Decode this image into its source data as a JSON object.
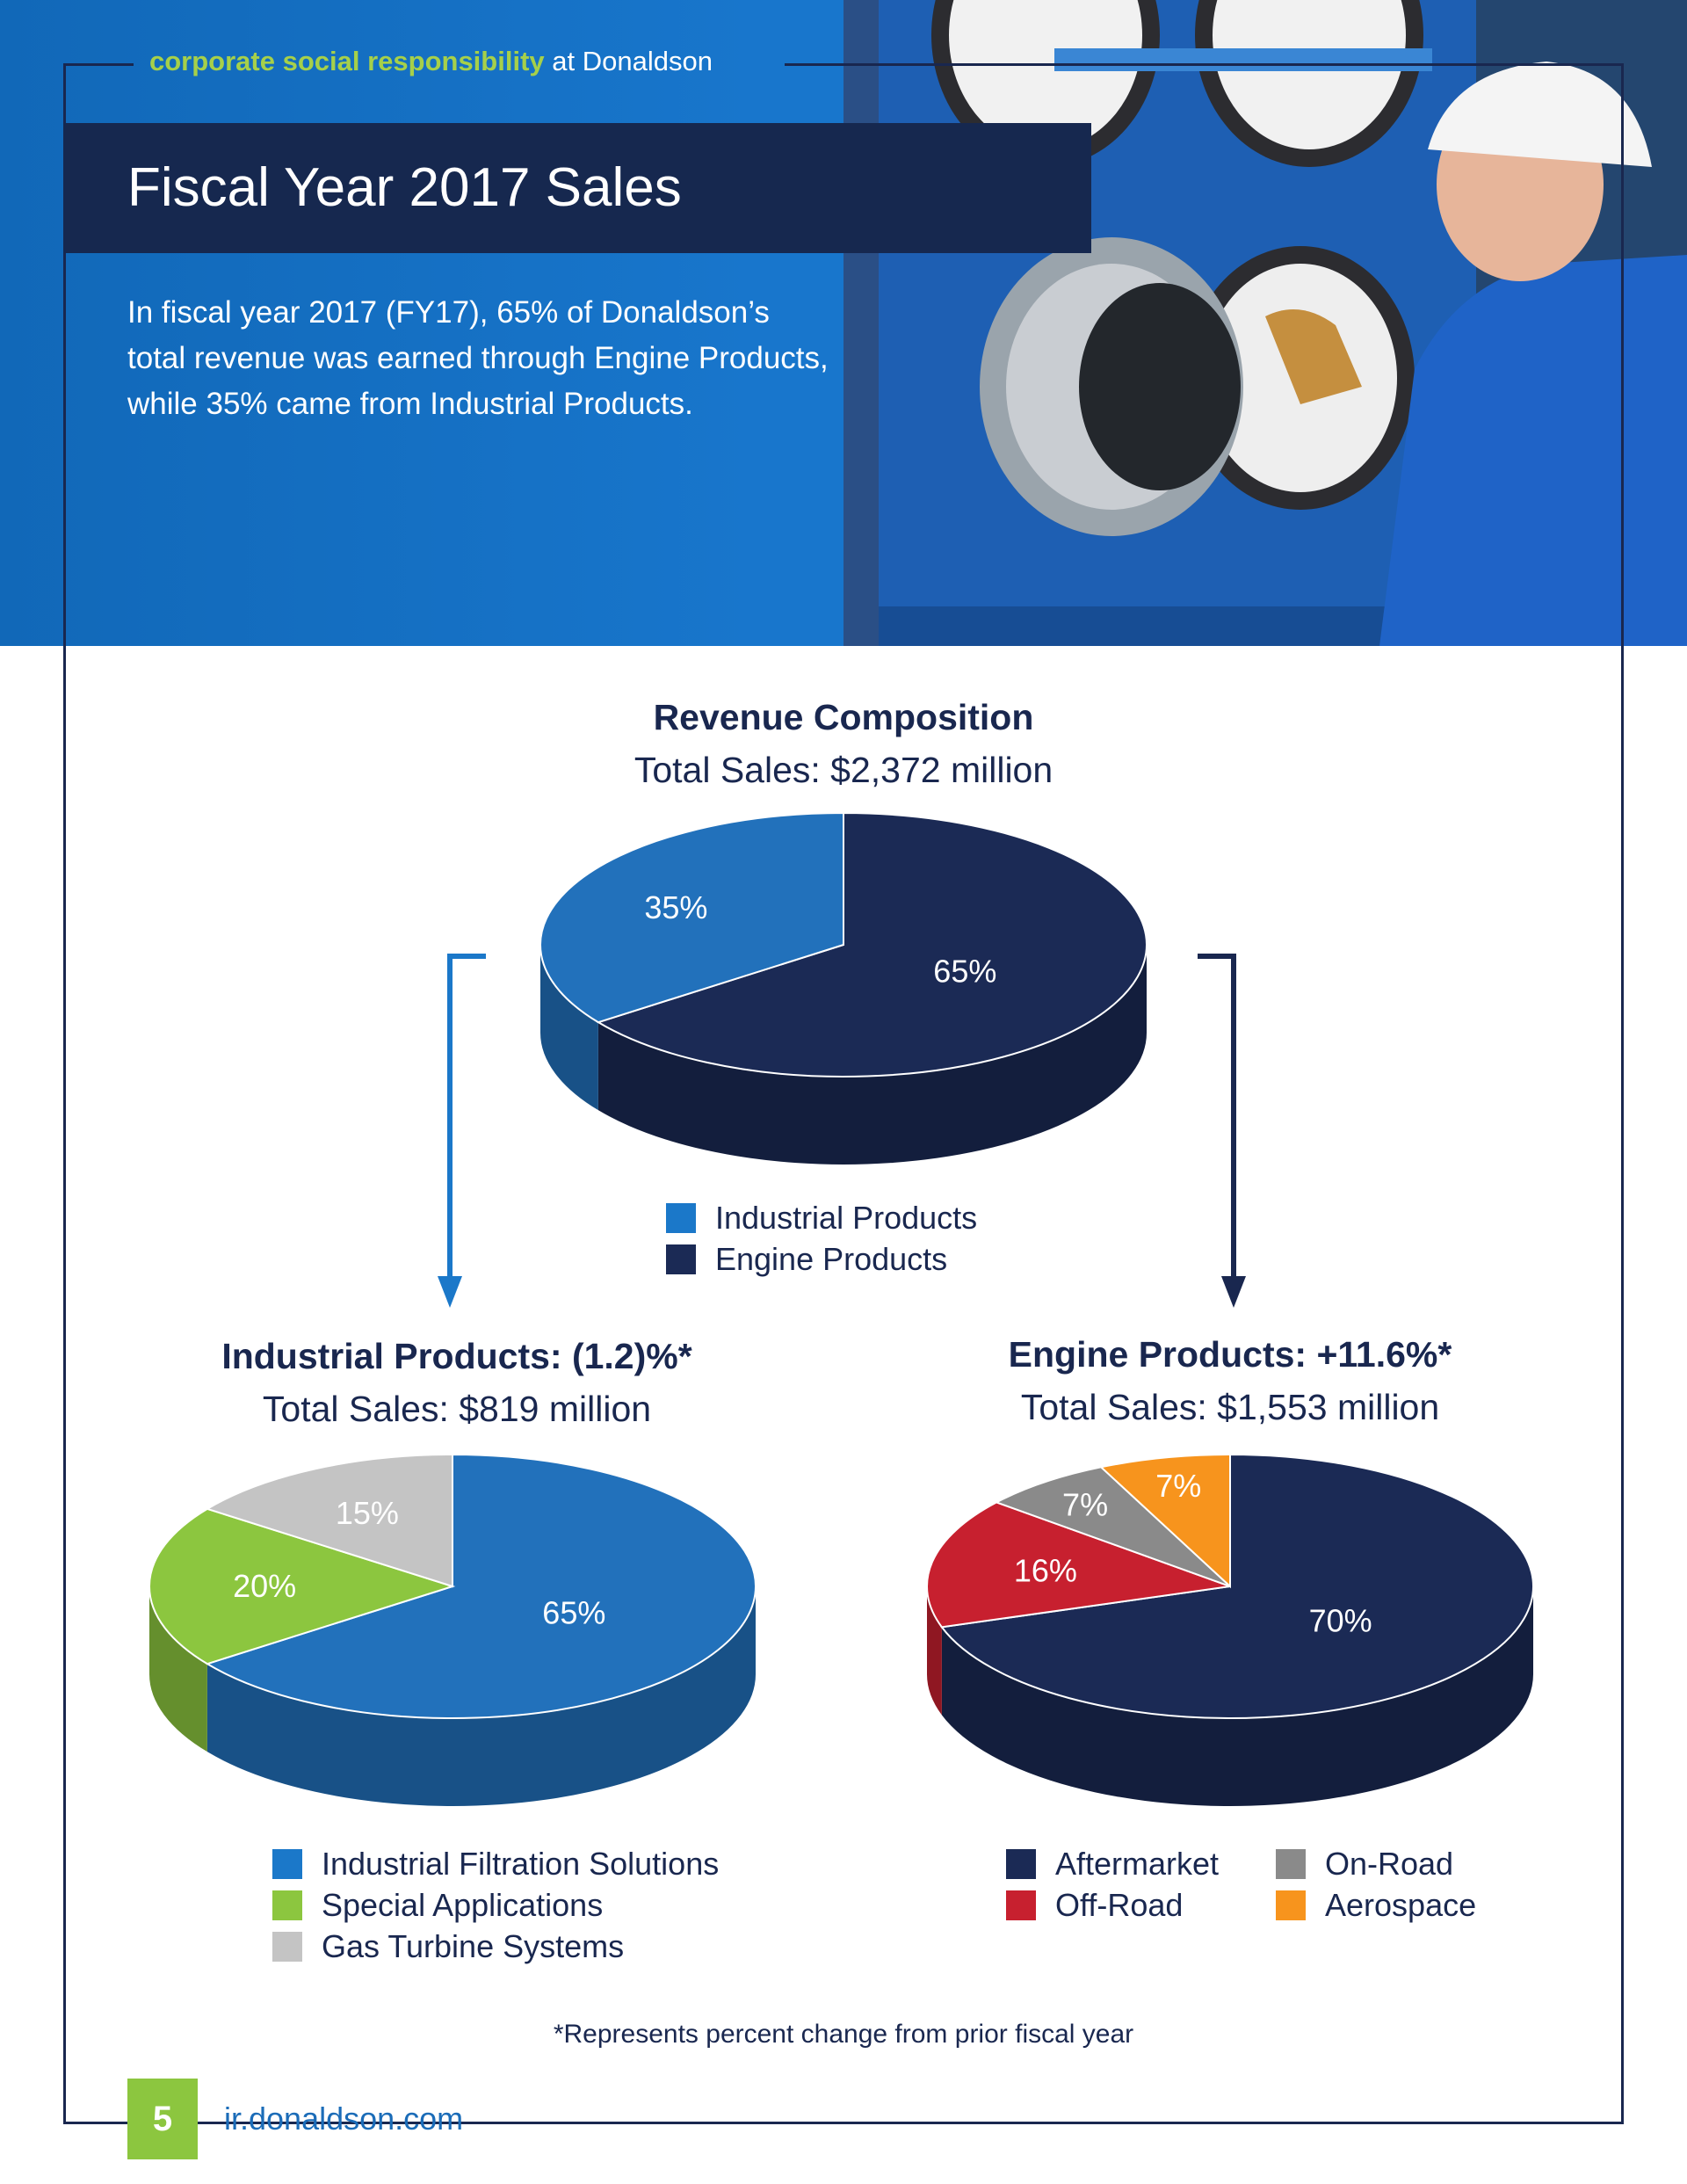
{
  "header": {
    "tag_highlight": "corporate social responsibility",
    "tag_rest": "at Donaldson",
    "title": "Fiscal Year 2017 Sales",
    "intro": "In fiscal year 2017 (FY17), 65% of Donaldson’s total revenue was earned through Engine Products, while 35% came from Industrial Products."
  },
  "colors": {
    "hero_blue": "#1876cc",
    "navy": "#19274f",
    "industrial_blue": "#2271bb",
    "engine_navy": "#1b2a55",
    "green": "#8cc63f",
    "gray_light": "#c4c4c4",
    "red": "#c7202f",
    "gray": "#8a8a8a",
    "orange": "#f7941d"
  },
  "chart_data": [
    {
      "type": "pie",
      "title": "Revenue Composition",
      "subtitle": "Total Sales: $2,372 million",
      "categories": [
        "Engine Products",
        "Industrial Products"
      ],
      "values": [
        65,
        35
      ],
      "labels": [
        "65%",
        "35%"
      ],
      "colors": [
        "#1b2a55",
        "#2271bb"
      ],
      "legend": [
        {
          "label": "Industrial Products",
          "color": "#1b78c9"
        },
        {
          "label": "Engine Products",
          "color": "#1b2a55"
        }
      ]
    },
    {
      "type": "pie",
      "title": "Industrial Products: (1.2)%*",
      "subtitle": "Total Sales: $819 million",
      "categories": [
        "Industrial Filtration Solutions",
        "Special Applications",
        "Gas Turbine Systems"
      ],
      "values": [
        65,
        20,
        15
      ],
      "labels": [
        "65%",
        "20%",
        "15%"
      ],
      "colors": [
        "#2271bb",
        "#8cc63f",
        "#c4c4c4"
      ],
      "legend": [
        {
          "label": "Industrial Filtration Solutions",
          "color": "#1b78c9"
        },
        {
          "label": "Special Applications",
          "color": "#8cc63f"
        },
        {
          "label": "Gas Turbine Systems",
          "color": "#c4c4c4"
        }
      ]
    },
    {
      "type": "pie",
      "title": "Engine Products: +11.6%*",
      "subtitle": "Total Sales: $1,553 million",
      "categories": [
        "Aftermarket",
        "Off-Road",
        "On-Road",
        "Aerospace"
      ],
      "values": [
        70,
        16,
        7,
        7
      ],
      "labels": [
        "70%",
        "16%",
        "7%",
        "7%"
      ],
      "colors": [
        "#1b2a55",
        "#c7202f",
        "#8a8a8a",
        "#f7941d"
      ],
      "legend": [
        {
          "label": "Aftermarket",
          "color": "#1b2a55"
        },
        {
          "label": "Off-Road",
          "color": "#c7202f"
        },
        {
          "label": "On-Road",
          "color": "#8a8a8a"
        },
        {
          "label": "Aerospace",
          "color": "#f7941d"
        }
      ]
    }
  ],
  "footnote": "*Represents percent change from prior fiscal year",
  "footer": {
    "page_number": "5",
    "url": "ir.donaldson.com"
  }
}
